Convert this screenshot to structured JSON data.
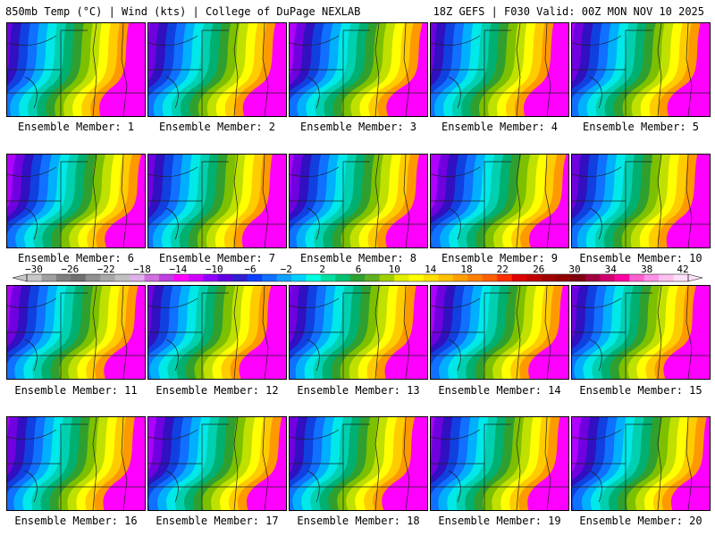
{
  "header": {
    "left": "850mb Temp (°C) | Wind (kts) | College of DuPage NEXLAB",
    "right": "18Z GEFS | F030 Valid: 00Z MON NOV 10 2025"
  },
  "panels": [
    {
      "label": "Ensemble Member: 1"
    },
    {
      "label": "Ensemble Member: 2"
    },
    {
      "label": "Ensemble Member: 3"
    },
    {
      "label": "Ensemble Member: 4"
    },
    {
      "label": "Ensemble Member: 5"
    },
    {
      "label": "Ensemble Member: 6"
    },
    {
      "label": "Ensemble Member: 7"
    },
    {
      "label": "Ensemble Member: 8"
    },
    {
      "label": "Ensemble Member: 9"
    },
    {
      "label": "Ensemble Member: 10"
    },
    {
      "label": "Ensemble Member: 11"
    },
    {
      "label": "Ensemble Member: 12"
    },
    {
      "label": "Ensemble Member: 13"
    },
    {
      "label": "Ensemble Member: 14"
    },
    {
      "label": "Ensemble Member: 15"
    },
    {
      "label": "Ensemble Member: 16"
    },
    {
      "label": "Ensemble Member: 17"
    },
    {
      "label": "Ensemble Member: 18"
    },
    {
      "label": "Ensemble Member: 19"
    },
    {
      "label": "Ensemble Member: 20"
    }
  ],
  "colorbar": {
    "ticks": [
      "−30",
      "−26",
      "−22",
      "−18",
      "−14",
      "−10",
      "−6",
      "−2",
      "2",
      "6",
      "10",
      "14",
      "18",
      "22",
      "26",
      "30",
      "34",
      "38",
      "42"
    ],
    "colors": [
      "#c8c8c8",
      "#a0a0a0",
      "#808080",
      "#707070",
      "#909090",
      "#a8a8a8",
      "#c0c0c0",
      "#e0b0e8",
      "#d070e0",
      "#c040e0",
      "#ff00ff",
      "#d000ff",
      "#9000ff",
      "#6000e0",
      "#3020d0",
      "#1040ff",
      "#1070ff",
      "#10a0ff",
      "#00d0ff",
      "#00ffe0",
      "#00e0a0",
      "#00c070",
      "#30a030",
      "#60b020",
      "#a0d000",
      "#e0f000",
      "#ffff00",
      "#ffe000",
      "#ffc000",
      "#ffa000",
      "#ff8000",
      "#ff6000",
      "#ff3000",
      "#e00000",
      "#c00000",
      "#a00000",
      "#900000",
      "#800010",
      "#a00040",
      "#d00070",
      "#ff00a0",
      "#ff60d0",
      "#ff90e8",
      "#ffc0f0",
      "#ffe0f8"
    ]
  },
  "palette": {
    "warm": [
      "#ff9900",
      "#ffcc00",
      "#ffff00",
      "#c0e000",
      "#7cc000",
      "#2fa02f",
      "#00b070",
      "#00d0b0",
      "#00e8e8",
      "#00b0ff",
      "#1070ff",
      "#1040e0",
      "#3010c0",
      "#7000e0",
      "#b000ff",
      "#ff00ff"
    ]
  }
}
